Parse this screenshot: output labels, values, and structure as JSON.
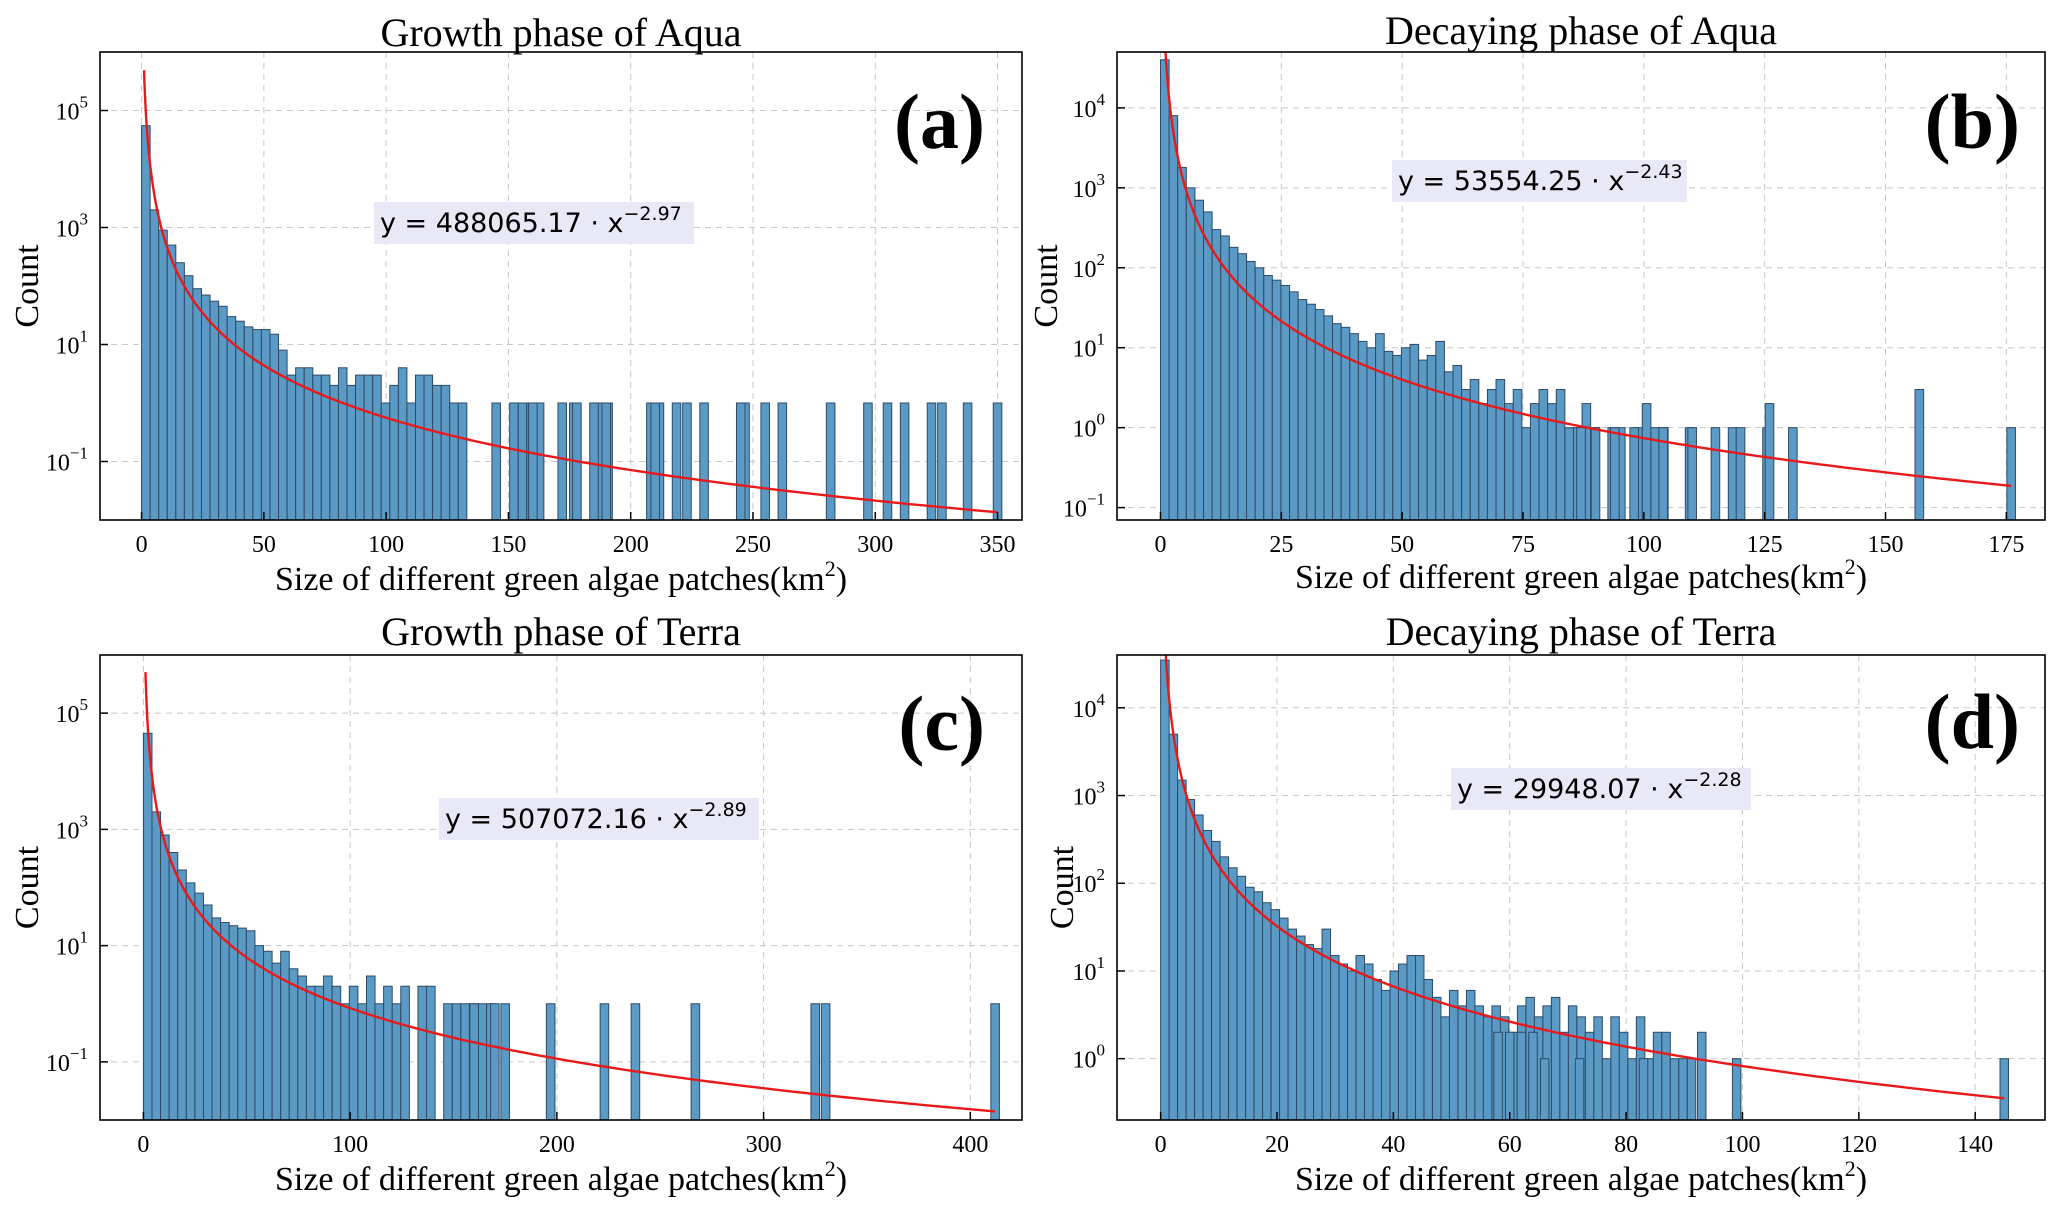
{
  "chart_data": [
    {
      "type": "bar",
      "panel_label": "(a)",
      "title": "Growth phase of Aqua",
      "xlabel": "Size of different green algae patches(km",
      "xlabel_sup": "2",
      "xlabel_close": ")",
      "ylabel": "Count",
      "yscale": "log",
      "xlim": [
        -17,
        360
      ],
      "ylim": [
        0.01,
        1000000
      ],
      "xticks": [
        0,
        50,
        100,
        150,
        200,
        250,
        300,
        350
      ],
      "yticks": [
        {
          "base": "10",
          "exp": "5",
          "value": 100000
        },
        {
          "base": "10",
          "exp": "3",
          "value": 1000
        },
        {
          "base": "10",
          "exp": "1",
          "value": 10
        },
        {
          "base": "10",
          "exp": "−1",
          "value": 0.1
        }
      ],
      "bin_width": 3.5,
      "bin_counts": [
        55000,
        2000,
        900,
        500,
        250,
        150,
        90,
        70,
        55,
        45,
        30,
        25,
        20,
        18,
        18,
        15,
        8,
        3,
        4,
        4,
        3,
        3,
        2,
        4,
        2,
        3,
        3,
        3,
        1,
        2,
        4,
        1,
        3,
        3,
        2,
        2,
        1,
        1,
        0,
        0,
        0,
        0,
        0,
        1,
        1,
        1,
        1,
        0,
        0,
        0,
        1,
        0,
        0,
        1,
        1,
        0,
        0,
        0,
        0,
        1,
        1,
        0,
        1,
        0,
        0,
        0,
        0,
        0,
        0,
        0,
        1,
        0,
        0,
        0,
        0,
        0,
        0,
        0,
        0,
        0,
        1,
        0,
        0,
        0,
        0,
        0,
        0,
        0,
        0,
        0,
        0,
        0,
        0,
        1,
        0,
        0,
        1,
        0,
        0,
        0,
        0,
        0,
        0,
        0,
        0,
        0,
        0,
        0,
        0,
        0,
        0,
        0,
        0,
        0,
        0,
        0,
        0,
        0,
        0,
        0,
        0,
        0,
        0,
        0,
        0,
        0,
        0,
        0,
        0,
        0,
        0,
        0,
        0,
        0,
        0,
        0,
        0,
        0,
        0,
        0,
        0,
        0,
        0,
        0,
        0,
        0,
        0,
        0,
        0,
        0,
        0,
        0,
        0,
        0,
        0,
        0,
        0,
        0,
        0,
        0,
        0,
        0,
        0,
        0,
        0,
        0,
        0,
        0,
        0,
        0,
        0,
        0,
        0,
        0,
        0,
        0,
        0,
        0,
        0,
        0,
        0,
        0,
        0,
        0,
        0,
        0,
        0,
        0,
        0,
        0,
        0,
        0,
        0,
        0,
        0,
        0,
        0,
        0,
        0,
        0,
        0,
        0,
        0,
        0,
        0,
        0,
        0,
        0,
        0,
        0,
        0,
        0,
        0,
        0,
        0,
        0,
        0,
        0,
        0,
        0
      ],
      "extra_bars": [
        [
          145,
          1
        ],
        [
          160,
          1
        ],
        [
          172,
          1
        ],
        [
          178,
          1
        ],
        [
          185,
          1
        ],
        [
          190,
          1
        ],
        [
          210,
          1
        ],
        [
          223,
          1
        ],
        [
          230,
          1
        ],
        [
          245,
          1
        ],
        [
          255,
          1
        ],
        [
          262,
          1
        ],
        [
          297,
          1
        ],
        [
          305,
          1
        ],
        [
          312,
          1
        ],
        [
          323,
          1
        ],
        [
          350,
          1
        ]
      ],
      "fit": {
        "a": 488065.17,
        "b": -2.97,
        "x_from": 1,
        "x_to": 350
      },
      "equation": {
        "prefix": "y = 488065.17 · x",
        "exp": "−2.97"
      }
    },
    {
      "type": "bar",
      "panel_label": "(b)",
      "title": "Decaying phase of Aqua",
      "xlabel": "Size of different green algae patches(km",
      "xlabel_sup": "2",
      "xlabel_close": ")",
      "ylabel": "Count",
      "yscale": "log",
      "xlim": [
        -9,
        183
      ],
      "ylim": [
        0.07,
        50000
      ],
      "xticks": [
        0,
        25,
        50,
        75,
        100,
        125,
        150,
        175
      ],
      "yticks": [
        {
          "base": "10",
          "exp": "4",
          "value": 10000
        },
        {
          "base": "10",
          "exp": "3",
          "value": 1000
        },
        {
          "base": "10",
          "exp": "2",
          "value": 100
        },
        {
          "base": "10",
          "exp": "1",
          "value": 10
        },
        {
          "base": "10",
          "exp": "0",
          "value": 1
        },
        {
          "base": "10",
          "exp": "−1",
          "value": 0.1
        }
      ],
      "bin_width": 1.78,
      "bin_counts": [
        40000,
        8000,
        1800,
        1000,
        700,
        500,
        300,
        250,
        180,
        150,
        120,
        100,
        80,
        70,
        60,
        50,
        40,
        35,
        30,
        25,
        20,
        18,
        15,
        12,
        10,
        15,
        9,
        8,
        10,
        11,
        7,
        8,
        12,
        5,
        6,
        3,
        4,
        2,
        3,
        4,
        2,
        3,
        1,
        2,
        3,
        2,
        3,
        1,
        1,
        2,
        1,
        0,
        1,
        1,
        0,
        1,
        2,
        1,
        1,
        0,
        0,
        1,
        0,
        0,
        1,
        0,
        1,
        0,
        0,
        0,
        1,
        0,
        0,
        1,
        0,
        0,
        0,
        0,
        0,
        0,
        0,
        0,
        0,
        0,
        0,
        0,
        0,
        0,
        0,
        0,
        0,
        0,
        0,
        0,
        0,
        0,
        0,
        0,
        0,
        0
      ],
      "extra_bars": [
        [
          87,
          1
        ],
        [
          90,
          1
        ],
        [
          94,
          1
        ],
        [
          98,
          1
        ],
        [
          104,
          1
        ],
        [
          110,
          1
        ],
        [
          120,
          1
        ],
        [
          126,
          2
        ],
        [
          157,
          3
        ],
        [
          176,
          1
        ]
      ],
      "fit": {
        "a": 53554.25,
        "b": -2.43,
        "x_from": 0.6,
        "x_to": 176
      },
      "equation": {
        "prefix": "y = 53554.25 · x",
        "exp": "−2.43"
      }
    },
    {
      "type": "bar",
      "panel_label": "(c)",
      "title": "Growth phase of Terra",
      "xlabel": "Size of different green algae patches(km",
      "xlabel_sup": "2",
      "xlabel_close": ")",
      "ylabel": "Count",
      "yscale": "log",
      "xlim": [
        -21,
        425
      ],
      "ylim": [
        0.01,
        1000000
      ],
      "xticks": [
        0,
        100,
        200,
        300,
        400
      ],
      "yticks": [
        {
          "base": "10",
          "exp": "5",
          "value": 100000
        },
        {
          "base": "10",
          "exp": "3",
          "value": 1000
        },
        {
          "base": "10",
          "exp": "1",
          "value": 10
        },
        {
          "base": "10",
          "exp": "−1",
          "value": 0.1
        }
      ],
      "bin_width": 4.15,
      "bin_counts": [
        45000,
        2000,
        800,
        400,
        200,
        120,
        80,
        50,
        30,
        25,
        22,
        20,
        18,
        10,
        8,
        5,
        8,
        4,
        3,
        2,
        2,
        3,
        2,
        1,
        2,
        1,
        3,
        1,
        2,
        1,
        2,
        0,
        2,
        2,
        0,
        1,
        1,
        1,
        1,
        1,
        1,
        0,
        0,
        0,
        0,
        0,
        0,
        0,
        0,
        0,
        0,
        0,
        0,
        0,
        0,
        0,
        0,
        0,
        0,
        0,
        0,
        0,
        0,
        0,
        0,
        0,
        0,
        0,
        0,
        0,
        0,
        0,
        0,
        0,
        0,
        0,
        0,
        0,
        0,
        0,
        0,
        0,
        0,
        0,
        0,
        0,
        0,
        0,
        0,
        0,
        0,
        0,
        0,
        0,
        0,
        0,
        0,
        0,
        0,
        0
      ],
      "extra_bars": [
        [
          160,
          1
        ],
        [
          170,
          1
        ],
        [
          175,
          1
        ],
        [
          197,
          1
        ],
        [
          223,
          1
        ],
        [
          238,
          1
        ],
        [
          267,
          1
        ],
        [
          325,
          1
        ],
        [
          330,
          1
        ],
        [
          412,
          1
        ]
      ],
      "fit": {
        "a": 507072.16,
        "b": -2.89,
        "x_from": 1,
        "x_to": 412
      },
      "equation": {
        "prefix": "y = 507072.16 · x",
        "exp": "−2.89"
      }
    },
    {
      "type": "bar",
      "panel_label": "(d)",
      "title": "Decaying phase of Terra",
      "xlabel": "Size of different green algae patches(km",
      "xlabel_sup": "2",
      "xlabel_close": ")",
      "ylabel": "Count",
      "yscale": "log",
      "xlim": [
        -7.5,
        152
      ],
      "ylim": [
        0.2,
        40000
      ],
      "xticks": [
        0,
        20,
        40,
        60,
        80,
        100,
        120,
        140
      ],
      "yticks": [
        {
          "base": "10",
          "exp": "4",
          "value": 10000
        },
        {
          "base": "10",
          "exp": "3",
          "value": 1000
        },
        {
          "base": "10",
          "exp": "2",
          "value": 100
        },
        {
          "base": "10",
          "exp": "1",
          "value": 10
        },
        {
          "base": "10",
          "exp": "0",
          "value": 1
        }
      ],
      "bin_width": 1.46,
      "bin_counts": [
        35000,
        5000,
        1500,
        900,
        600,
        400,
        300,
        200,
        150,
        120,
        90,
        80,
        60,
        50,
        40,
        30,
        25,
        20,
        18,
        30,
        15,
        12,
        10,
        15,
        12,
        8,
        6,
        10,
        12,
        15,
        15,
        8,
        5,
        3,
        6,
        4,
        6,
        4,
        3,
        4,
        3,
        2,
        4,
        5,
        3,
        4,
        5,
        2,
        4,
        3,
        2,
        3,
        1,
        3,
        2,
        1,
        3,
        1,
        2,
        2,
        1,
        1,
        1,
        0,
        0,
        0,
        0,
        0,
        0,
        0,
        0,
        0,
        0,
        0,
        0,
        0,
        0,
        0,
        0,
        0,
        0,
        0,
        0,
        0,
        0,
        0,
        0,
        0,
        0,
        0,
        0,
        0,
        0,
        0,
        0,
        0,
        0,
        0,
        0,
        0
      ],
      "extra_bars": [
        [
          58,
          2
        ],
        [
          60,
          2
        ],
        [
          62,
          2
        ],
        [
          64,
          2
        ],
        [
          66,
          1
        ],
        [
          72,
          1
        ],
        [
          83,
          1
        ],
        [
          93,
          2
        ],
        [
          99,
          1
        ],
        [
          145,
          1
        ]
      ],
      "fit": {
        "a": 29948.07,
        "b": -2.28,
        "x_from": 0.5,
        "x_to": 145
      },
      "equation": {
        "prefix": "y = 29948.07 · x",
        "exp": "−2.28"
      }
    }
  ]
}
